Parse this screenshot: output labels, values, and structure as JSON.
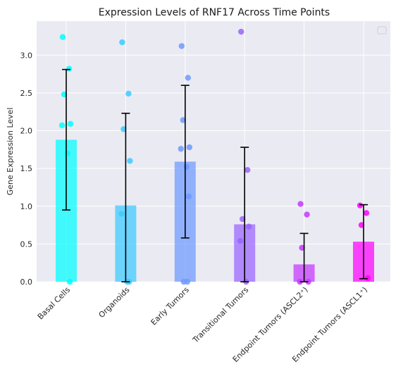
{
  "chart_data": {
    "type": "bar",
    "title": "Expression Levels of RNF17 Across Time Points",
    "xlabel": "",
    "ylabel": "Gene Expression Level",
    "ylim": [
      0,
      3.45
    ],
    "yticks": [
      "0.0",
      "0.5",
      "1.0",
      "1.5",
      "2.0",
      "2.5",
      "3.0"
    ],
    "ytick_values": [
      0,
      0.5,
      1.0,
      1.5,
      2.0,
      2.5,
      3.0
    ],
    "grid": true,
    "legend": "top-right (empty)",
    "categories": [
      "Basal Cells",
      "Organoids",
      "Early Tumors",
      "Transitional Tumors",
      "Endpoint Tumors (ASCL2⁺)",
      "Endpoint Tumors (ASCL1⁺)"
    ],
    "values": [
      1.88,
      1.01,
      1.59,
      0.76,
      0.23,
      0.53
    ],
    "errors": [
      0.93,
      1.22,
      1.01,
      1.02,
      0.41,
      0.49
    ],
    "colors": [
      "#00ffff",
      "#3ccbff",
      "#6f9aff",
      "#9a64ff",
      "#c438ff",
      "#ff00ff"
    ],
    "points": [
      [
        3.24,
        2.82,
        2.48,
        2.09,
        2.07,
        1.7,
        0.0
      ],
      [
        3.17,
        2.49,
        2.02,
        1.6,
        0.9,
        0.0,
        0.0
      ],
      [
        3.12,
        2.7,
        2.14,
        1.78,
        1.76,
        1.52,
        1.13,
        0.0,
        0.0
      ],
      [
        3.31,
        1.48,
        0.83,
        0.73,
        0.54,
        0.0
      ],
      [
        1.03,
        0.89,
        0.45,
        0.0,
        0.0
      ],
      [
        1.01,
        0.91,
        0.75,
        0.05
      ]
    ],
    "background": "#eaeaf2",
    "gridColor": "#ffffff"
  }
}
